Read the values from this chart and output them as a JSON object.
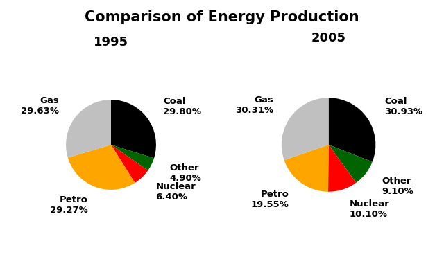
{
  "title": "Comparison of Energy Production",
  "title_fontsize": 15,
  "title_fontweight": "bold",
  "charts": [
    {
      "year": "1995",
      "labels": [
        "Coal",
        "Other",
        "Nuclear",
        "Petro",
        "Gas"
      ],
      "values": [
        29.8,
        4.9,
        6.4,
        29.27,
        29.63
      ],
      "colors": [
        "#000000",
        "#006400",
        "#ff0000",
        "#ffa500",
        "#c0c0c0"
      ],
      "pct_labels": [
        "29.80%",
        "4.90%",
        "6.40%",
        "29.27%",
        "29.63%"
      ],
      "startangle": 90
    },
    {
      "year": "2005",
      "labels": [
        "Coal",
        "Other",
        "Nuclear",
        "Petro",
        "Gas"
      ],
      "values": [
        30.93,
        9.1,
        10.1,
        19.55,
        30.31
      ],
      "colors": [
        "#000000",
        "#006400",
        "#ff0000",
        "#ffa500",
        "#c0c0c0"
      ],
      "pct_labels": [
        "30.93%",
        "9.10%",
        "10.10%",
        "19.55%",
        "30.31%"
      ],
      "startangle": 90
    }
  ],
  "year_fontsize": 13,
  "year_fontweight": "bold",
  "label_fontsize": 9.5,
  "bg_color": "#ffffff"
}
